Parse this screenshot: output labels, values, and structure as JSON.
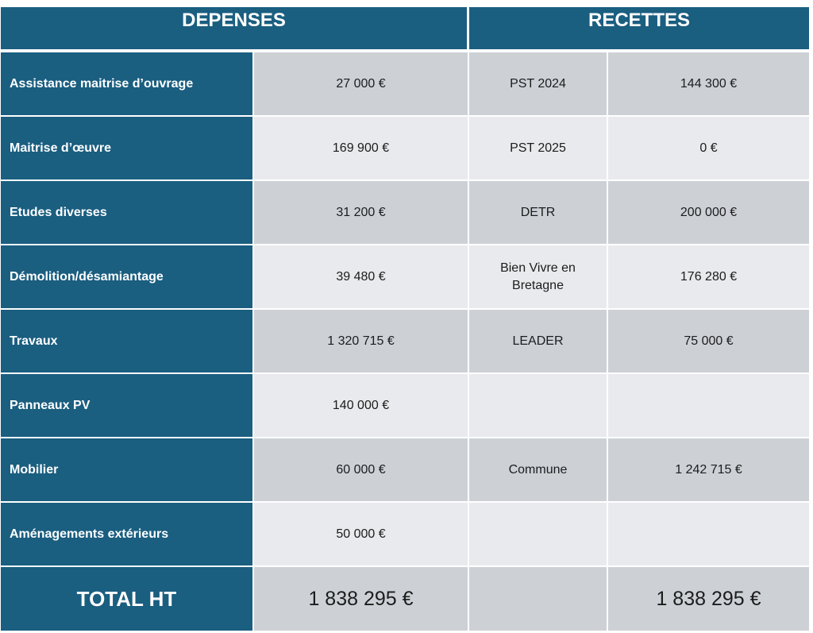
{
  "header": {
    "depenses": "DEPENSES",
    "recettes": "RECETTES"
  },
  "rows": [
    {
      "depense": "Assistance maitrise d’ouvrage",
      "montant": "27 000 €",
      "recette": "PST 2024",
      "recette_montant": "144 300 €"
    },
    {
      "depense": "Maitrise d’œuvre",
      "montant": "169 900 €",
      "recette": "PST 2025",
      "recette_montant": "0 €"
    },
    {
      "depense": "Etudes diverses",
      "montant": "31 200 €",
      "recette": "DETR",
      "recette_montant": "200 000 €"
    },
    {
      "depense": "Démolition/désamiantage",
      "montant": "39 480 €",
      "recette": "Bien Vivre en Bretagne",
      "recette_montant": "176 280 €"
    },
    {
      "depense": "Travaux",
      "montant": "1 320 715 €",
      "recette": "LEADER",
      "recette_montant": "75 000 €"
    },
    {
      "depense": "Panneaux PV",
      "montant": "140 000 €",
      "recette": "",
      "recette_montant": ""
    },
    {
      "depense": "Mobilier",
      "montant": "60 000 €",
      "recette": "Commune",
      "recette_montant": "1 242 715 €"
    },
    {
      "depense": "Aménagements extérieurs",
      "montant": "50 000 €",
      "recette": "",
      "recette_montant": ""
    }
  ],
  "total": {
    "label": "TOTAL HT",
    "depenses": "1 838 295 €",
    "recettes": "1 838 295 €"
  }
}
